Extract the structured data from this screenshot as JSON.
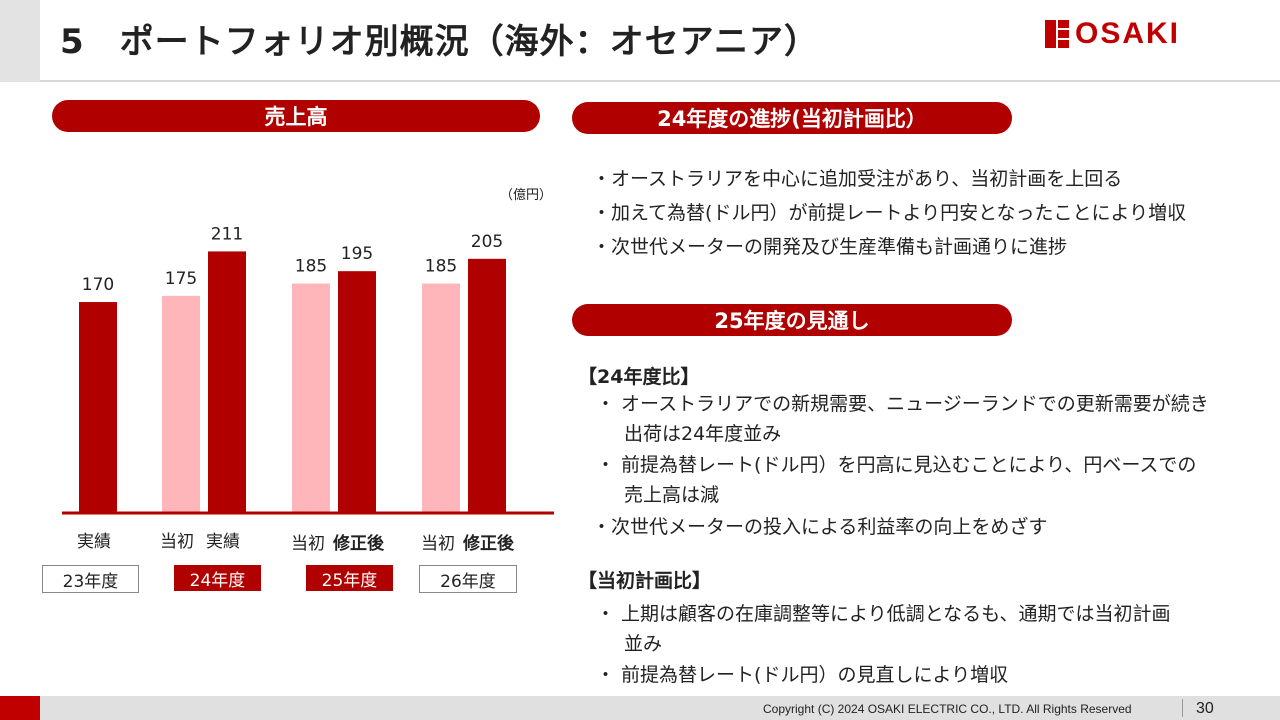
{
  "header": {
    "title": "5　ポートフォリオ別概況（海外：オセアニア）",
    "logo_text": "OSAKI"
  },
  "chart_section": {
    "heading": "売上高",
    "unit": "（億円）"
  },
  "chart_data": {
    "type": "bar",
    "title": "売上高",
    "unit": "（億円）",
    "ylim": [
      0,
      230
    ],
    "grid": false,
    "groups": [
      {
        "year": "23年度",
        "year_style": "plain",
        "bars": [
          {
            "label": "実績",
            "value": 170,
            "color": "#b00000",
            "bold": false
          }
        ]
      },
      {
        "year": "24年度",
        "year_style": "red",
        "bars": [
          {
            "label": "当初",
            "value": 175,
            "color": "#ffb6bb",
            "bold": false
          },
          {
            "label": "実績",
            "value": 211,
            "color": "#b00000",
            "bold": false
          }
        ]
      },
      {
        "year": "25年度",
        "year_style": "red",
        "bars": [
          {
            "label": "当初",
            "value": 185,
            "color": "#ffb6bb",
            "bold": false
          },
          {
            "label": "修正後",
            "value": 195,
            "color": "#b00000",
            "bold": true
          }
        ]
      },
      {
        "year": "26年度",
        "year_style": "plain",
        "bars": [
          {
            "label": "当初",
            "value": 185,
            "color": "#ffb6bb",
            "bold": false
          },
          {
            "label": "修正後",
            "value": 205,
            "color": "#b00000",
            "bold": true
          }
        ]
      }
    ]
  },
  "progress": {
    "heading": "24年度の進捗(当初計画比）",
    "bullets": [
      "・オーストラリアを中心に追加受注があり、当初計画を上回る",
      "・加えて為替(ドル円）が前提レートより円安となったことにより増収",
      "・次世代メーターの開発及び生産準備も計画通りに進捗"
    ]
  },
  "outlook": {
    "heading": "25年度の見通し",
    "section1_title": "【24年度比】",
    "section1_lines": [
      "・ オーストラリアでの新規需要、ニュージーランドでの更新需要が続き",
      "出荷は24年度並み",
      "・ 前提為替レート(ドル円）を円高に見込むことにより、円ベースでの",
      "売上高は減",
      "・次世代メーターの投入による利益率の向上をめざす"
    ],
    "section2_title": "【当初計画比】",
    "section2_lines": [
      "・ 上期は顧客の在庫調整等により低調となるも、通期では当初計画",
      "並み",
      "・ 前提為替レート(ドル円）の見直しにより増収"
    ]
  },
  "footer": {
    "copyright": "Copyright (C) 2024 OSAKI ELECTRIC CO., LTD. All Rights Reserved",
    "page_number": "30"
  }
}
